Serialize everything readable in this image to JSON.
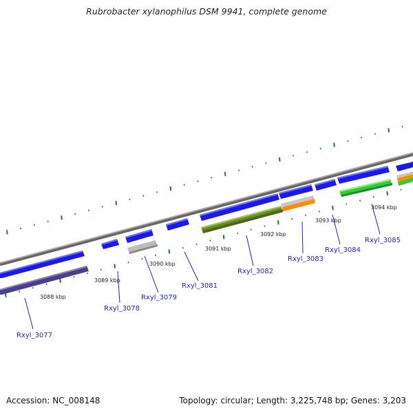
{
  "title": "Rubrobacter xylanophilus DSM 9941, complete genome",
  "footer": {
    "accession": "Accession: NC_008148",
    "topology": "Topology: circular; Length: 3,225,748 bp; Genes: 3,203"
  },
  "kbp_labels": [
    "3088 kbp",
    "3089 kbp",
    "3090 kbp",
    "3091 kbp",
    "3092 kbp",
    "3093 kbp",
    "3094 kbp"
  ],
  "genes": [
    {
      "id": "Rxyl_3077",
      "strand": "+",
      "color": "#1a1aee",
      "cds_color": "#4a3f8f"
    },
    {
      "id": "Rxyl_3078",
      "strand": "-",
      "color": "#1a1aee"
    },
    {
      "id": "Rxyl_3079",
      "strand": "+",
      "color": "#1a1aee",
      "cds_color": "#bdbdbd"
    },
    {
      "id": "Rxyl_3081",
      "strand": "-",
      "color": "#1a1aee"
    },
    {
      "id": "Rxyl_3082",
      "strand": "+",
      "color": "#1a1aee",
      "cds_color": "#6b8e23"
    },
    {
      "id": "Rxyl_3083",
      "strand": "+",
      "color": "#1a1aee",
      "cds_color": "#ff8c00"
    },
    {
      "id": "Rxyl_3084",
      "strand": "-",
      "color": "#1a1aee"
    },
    {
      "id": "Rxyl_3085",
      "strand": "+",
      "color": "#1a1aee",
      "cds_color": "#32cd32"
    }
  ],
  "colors": {
    "backbone": "#8c8c8c",
    "gc_tick": "#1e7a1e",
    "gene": "#1a1aee",
    "label": "#1f1fd0"
  }
}
